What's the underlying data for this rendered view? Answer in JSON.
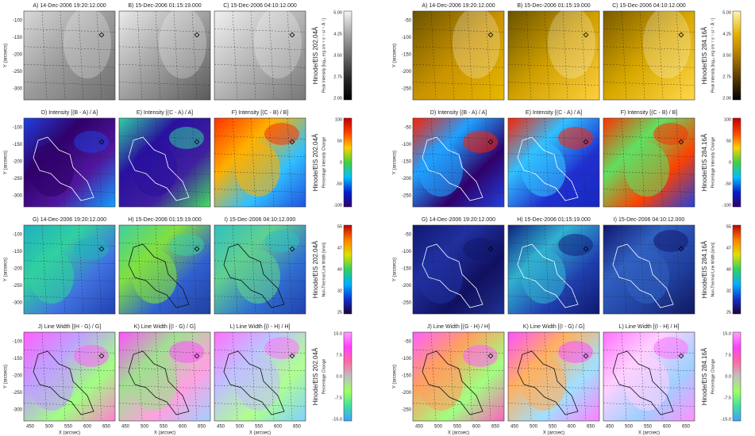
{
  "figures": [
    {
      "rows": [
        {
          "panels": [
            "A) 14-Dec-2006 19:20:12.000",
            "B) 15-Dec-2006 01:15:19.000",
            "C) 15-Dec-2006 04:10:12.000"
          ],
          "colorbar": {
            "title": "Hinode/EIS 202.04Å",
            "label": "Peak Intensity [log₁₀ erg cm⁻² s⁻¹ sr⁻¹ Å⁻¹]",
            "ticks": [
              "5.00",
              "4.25",
              "3.50",
              "2.75",
              "2.00"
            ]
          }
        },
        {
          "panels": [
            "D) Intensity [(B - A) / A]",
            "E) Intensity [(C - A) / A]",
            "F) Intensity [(C - B) / B]"
          ],
          "colorbar": {
            "title": "Hinode/EIS 202.04Å",
            "label": "Percentage Intensity Change",
            "ticks": [
              "100",
              "50",
              "0",
              "-50",
              "-100"
            ]
          }
        },
        {
          "panels": [
            "G) 14-Dec-2006 19:20:12.000",
            "H) 15-Dec-2006 01:15:19.000",
            "I) 15-Dec-2006 04:10:12.000"
          ],
          "colorbar": {
            "title": "Hinode/EIS 202.04Å",
            "label": "Non-Thermal Line Width [km/s]",
            "ticks": [
              "55",
              "47",
              "40",
              "32",
              "25"
            ]
          }
        },
        {
          "panels": [
            "J) Line Width [(H - G) / G]",
            "K) Line Width [(I - G) / G]",
            "L) Line Width [(I - H) / H]"
          ],
          "colorbar": {
            "title": "Hinode/EIS 202.04Å",
            "label": "Percentage Change",
            "ticks": [
              "15.0",
              "7.5",
              "0.0",
              "-7.5",
              "-15.0"
            ]
          }
        }
      ],
      "y_label": "Y (arcsecs)",
      "yticks": [
        "-100",
        "-150",
        "-200",
        "-250",
        "-300"
      ],
      "x_label": "X (arcsec)",
      "xticks": [
        "450",
        "500",
        "550",
        "600",
        "650"
      ]
    },
    {
      "rows": [
        {
          "panels": [
            "A) 14-Dec-2006 19:20:12.000",
            "B) 15-Dec-2006 01:15:19.000",
            "C) 15-Dec-2006 04:10:12.000"
          ],
          "colorbar": {
            "title": "Hinode/EIS 284.16Å",
            "label": "Peak Intensity [log₁₀ erg cm⁻² s⁻¹ sr⁻¹ Å⁻¹]",
            "ticks": [
              "5.00",
              "4.25",
              "3.50",
              "2.75",
              "2.00"
            ]
          }
        },
        {
          "panels": [
            "D) Intensity [(B - A) / A]",
            "E) Intensity [(C - A) / A]",
            "F) Intensity [(C - B) / B]"
          ],
          "colorbar": {
            "title": "Hinode/EIS 284.16Å",
            "label": "Percentage Intensity Change",
            "ticks": [
              "100",
              "50",
              "0",
              "-50",
              "-100"
            ]
          }
        },
        {
          "panels": [
            "G) 14-Dec-2006 19:20:12.000",
            "H) 15-Dec-2006 01:15:19.000",
            "I) 15-Dec-2006 04:10:12.000"
          ],
          "colorbar": {
            "title": "Hinode/EIS 284.16Å",
            "label": "Non-Thermal Line Width [km/s]",
            "ticks": [
              "55",
              "47",
              "40",
              "32",
              "25"
            ]
          }
        },
        {
          "panels": [
            "J) Line Width [(G - H) / H]",
            "K) Line Width [(I - G) / G]",
            "L) Line Width [(I - H) / H]"
          ],
          "colorbar": {
            "title": "Hinode/EIS 284.16Å",
            "label": "Percentage Change",
            "ticks": [
              "15.0",
              "7.5",
              "0.0",
              "-7.5",
              "-15.0"
            ]
          }
        }
      ],
      "y_label": "Y (arcsecs)",
      "yticks": [
        "-50",
        "-100",
        "-150",
        "-200",
        "-250"
      ],
      "x_label": "X (arcsec)",
      "xticks": [
        "450",
        "500",
        "550",
        "600",
        "650"
      ]
    }
  ]
}
